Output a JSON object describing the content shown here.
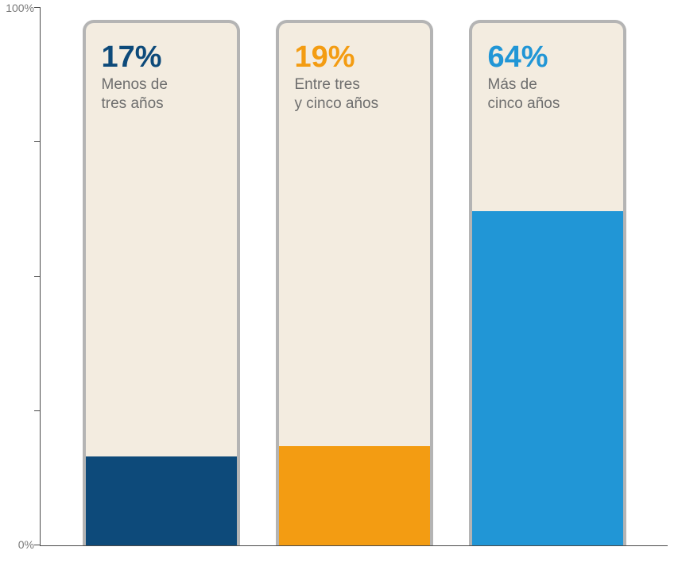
{
  "chart": {
    "type": "bar",
    "background_color": "#ffffff",
    "axis_color": "#4a4a4a",
    "tick_label_color": "#7a7a7a",
    "tick_label_fontsize": 14,
    "ylim": [
      0,
      100
    ],
    "ytick_positions": [
      0,
      25,
      50,
      75,
      100
    ],
    "ytick_labels": [
      "0%",
      "",
      "",
      "",
      "100%"
    ],
    "bar_empty_background": "#f3ece0",
    "bar_border_color": "#b4b4b4",
    "bar_border_width": 4,
    "bar_border_radius": 14,
    "value_fontsize": 38,
    "value_fontweight": 800,
    "desc_fontsize": 19,
    "desc_color": "#6e6e6e",
    "bars": [
      {
        "value": 17,
        "value_label": "17%",
        "description": "Menos de\ntres años",
        "fill_color": "#0d4a7a",
        "value_color": "#0d4a7a"
      },
      {
        "value": 19,
        "value_label": "19%",
        "description": "Entre tres\ny cinco años",
        "fill_color": "#f39c12",
        "value_color": "#f39c12"
      },
      {
        "value": 64,
        "value_label": "64%",
        "description": "Más de\ncinco años",
        "fill_color": "#2196d6",
        "value_color": "#2196d6"
      }
    ]
  }
}
